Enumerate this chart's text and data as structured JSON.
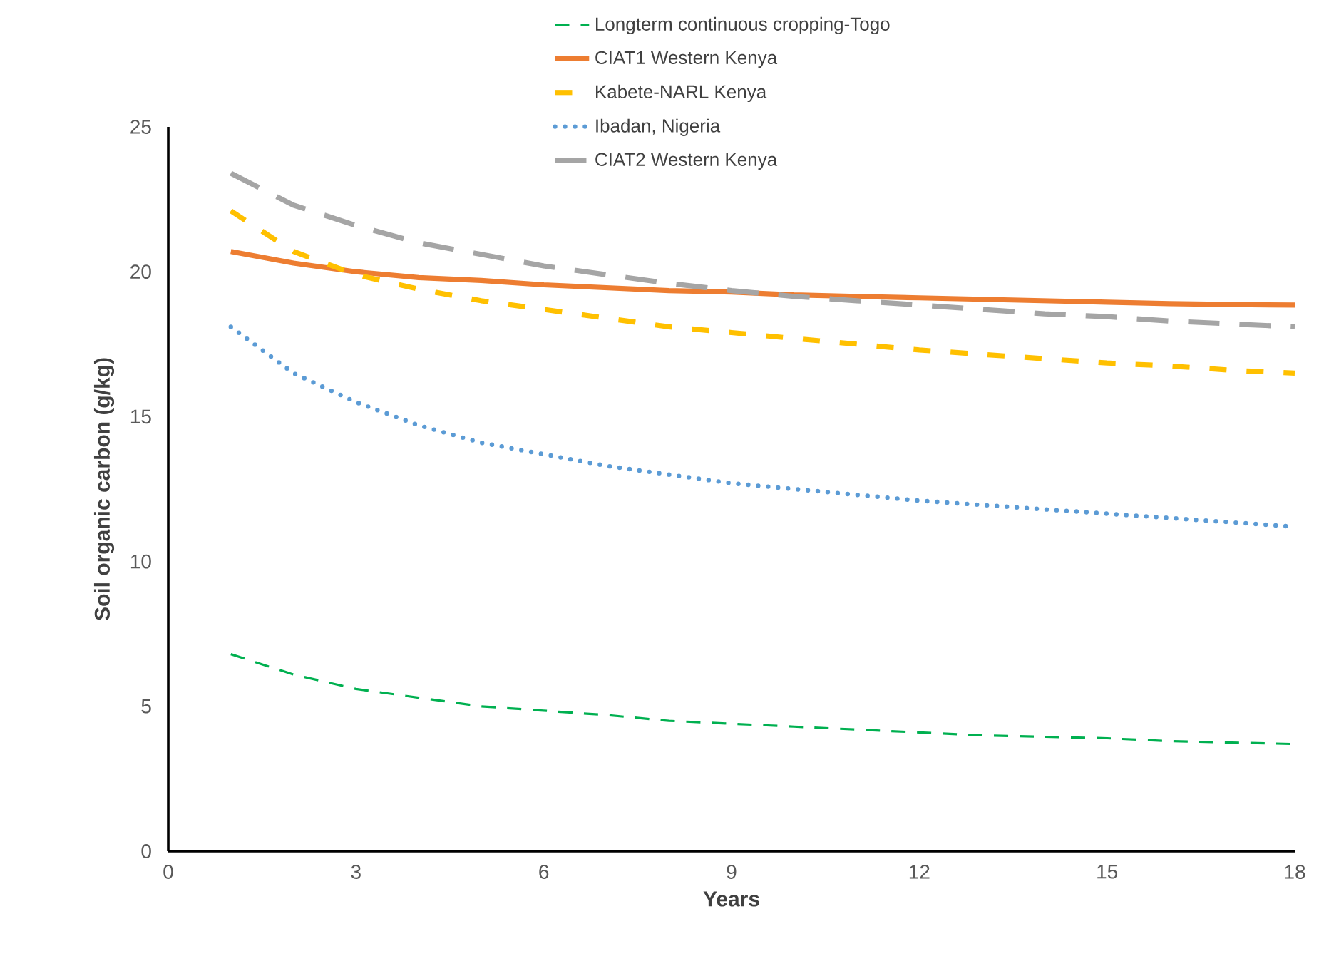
{
  "chart_data": {
    "type": "line",
    "xlabel": "Years",
    "ylabel": "Soil organic carbon (g/kg)",
    "x": [
      1,
      2,
      3,
      4,
      5,
      6,
      7,
      8,
      9,
      10,
      11,
      12,
      13,
      14,
      15,
      16,
      17,
      18
    ],
    "xlim": [
      0,
      18
    ],
    "xticks": [
      0,
      3,
      6,
      9,
      12,
      15,
      18
    ],
    "ylim": [
      0,
      25
    ],
    "yticks": [
      0,
      5,
      10,
      15,
      20,
      25
    ],
    "grid": false,
    "legend": "top",
    "marker": "none",
    "series": [
      {
        "name": "Longterm continuous cropping-Togo",
        "color": "#00b050",
        "line_style": "dashed",
        "values": [
          6.8,
          6.1,
          5.6,
          5.3,
          5.0,
          4.85,
          4.7,
          4.5,
          4.4,
          4.3,
          4.2,
          4.1,
          4.0,
          3.95,
          3.9,
          3.8,
          3.75,
          3.7
        ]
      },
      {
        "name": "CIAT1 Western Kenya",
        "color": "#ed7d31",
        "line_style": "solid",
        "values": [
          20.7,
          20.3,
          20.0,
          19.8,
          19.7,
          19.55,
          19.45,
          19.35,
          19.3,
          19.2,
          19.15,
          19.1,
          19.05,
          19.0,
          18.95,
          18.9,
          18.87,
          18.85
        ]
      },
      {
        "name": "Kabete-NARL Kenya",
        "color": "#ffc000",
        "line_style": "dashed",
        "values": [
          22.1,
          20.7,
          19.9,
          19.4,
          19.0,
          18.7,
          18.4,
          18.1,
          17.9,
          17.7,
          17.5,
          17.3,
          17.15,
          17.0,
          16.85,
          16.75,
          16.6,
          16.5
        ]
      },
      {
        "name": "Ibadan, Nigeria",
        "color": "#5b9bd5",
        "line_style": "dotted",
        "values": [
          18.1,
          16.5,
          15.5,
          14.7,
          14.1,
          13.7,
          13.3,
          13.0,
          12.7,
          12.5,
          12.3,
          12.1,
          11.95,
          11.8,
          11.65,
          11.5,
          11.35,
          11.2
        ]
      },
      {
        "name": "CIAT2 Western Kenya",
        "color": "#a5a5a5",
        "line_style": "dashed",
        "values": [
          23.4,
          22.3,
          21.6,
          21.0,
          20.6,
          20.2,
          19.9,
          19.6,
          19.35,
          19.15,
          19.0,
          18.85,
          18.7,
          18.55,
          18.45,
          18.3,
          18.2,
          18.1
        ]
      }
    ]
  }
}
